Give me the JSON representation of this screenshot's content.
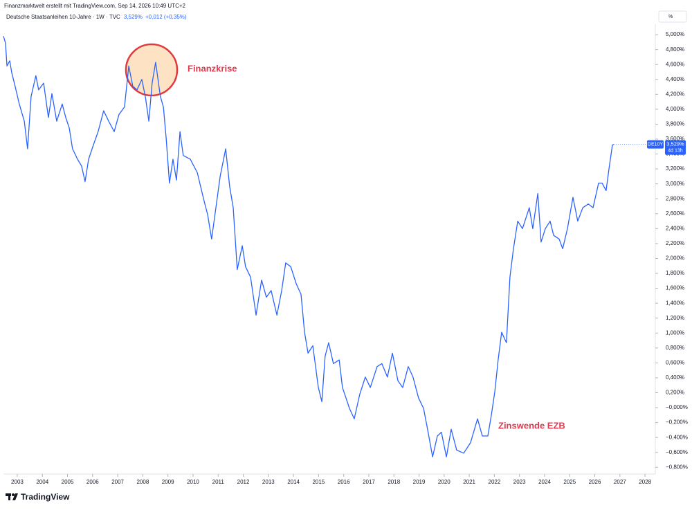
{
  "header": {
    "credit": "Finanzmarktwelt erstellt mit TradingView.com, Sep 14, 2026 10:49 UTC+2",
    "symbol": "Deutsche Staatsanleihen 10-Jahre · 1W · TVC",
    "price": "3,529%",
    "change": "+0,012 (+0,35%)",
    "unit": "%"
  },
  "footer": {
    "logo": "TradingView"
  },
  "chart_data": {
    "type": "line",
    "color": "#2962ff",
    "grid": false,
    "annotations": [
      "Finanzkrise",
      "Zinswende EZB"
    ],
    "last_price_label": "3,529%",
    "countdown": "4d 13h",
    "xlim": [
      2002.45,
      2028.41
    ],
    "ylim": [
      -0.89,
      5.14
    ],
    "xticks": [
      2003,
      2004,
      2005,
      2006,
      2007,
      2008,
      2009,
      2010,
      2011,
      2012,
      2013,
      2014,
      2015,
      2016,
      2017,
      2018,
      2019,
      2020,
      2021,
      2022,
      2023,
      2024,
      2025,
      2026,
      2027,
      2028
    ],
    "yticks": [
      {
        "value": -0.8,
        "label": "−0,800%"
      },
      {
        "value": -0.6,
        "label": "−0,600%"
      },
      {
        "value": -0.4,
        "label": "−0,400%"
      },
      {
        "value": -0.2,
        "label": "−0,200%"
      },
      {
        "value": 0,
        "label": "−0,000%"
      },
      {
        "value": 0.2,
        "label": "0,200%"
      },
      {
        "value": 0.4,
        "label": "0,400%"
      },
      {
        "value": 0.6,
        "label": "0,600%"
      },
      {
        "value": 0.8,
        "label": "0,800%"
      },
      {
        "value": 1.0,
        "label": "1,000%"
      },
      {
        "value": 1.2,
        "label": "1,200%"
      },
      {
        "value": 1.4,
        "label": "1,400%"
      },
      {
        "value": 1.6,
        "label": "1,600%"
      },
      {
        "value": 1.8,
        "label": "1,800%"
      },
      {
        "value": 2.0,
        "label": "2,000%"
      },
      {
        "value": 2.2,
        "label": "2,200%"
      },
      {
        "value": 2.4,
        "label": "2,400%"
      },
      {
        "value": 2.6,
        "label": "2,600%"
      },
      {
        "value": 2.8,
        "label": "2,800%"
      },
      {
        "value": 3.0,
        "label": "3,000%"
      },
      {
        "value": 3.2,
        "label": "3,200%"
      },
      {
        "value": 3.4,
        "label": "3,400%"
      },
      {
        "value": 3.6,
        "label": "3,600%"
      },
      {
        "value": 3.8,
        "label": "3,800%"
      },
      {
        "value": 4.0,
        "label": "4,000%"
      },
      {
        "value": 4.2,
        "label": "4,200%"
      },
      {
        "value": 4.4,
        "label": "4,400%"
      },
      {
        "value": 4.6,
        "label": "4,600%"
      },
      {
        "value": 4.8,
        "label": "4,800%"
      },
      {
        "value": 5.0,
        "label": "5,000%"
      }
    ],
    "x": [
      2002.45,
      2002.53,
      2002.59,
      2002.7,
      2002.78,
      2002.92,
      2003.08,
      2003.28,
      2003.41,
      2003.55,
      2003.74,
      2003.85,
      2004.05,
      2004.24,
      2004.38,
      2004.57,
      2004.79,
      2004.93,
      2005.07,
      2005.2,
      2005.4,
      2005.56,
      2005.7,
      2005.84,
      2006.03,
      2006.22,
      2006.44,
      2006.64,
      2006.86,
      2007.05,
      2007.27,
      2007.44,
      2007.6,
      2007.77,
      2007.96,
      2008.1,
      2008.24,
      2008.37,
      2008.51,
      2008.7,
      2008.82,
      2008.93,
      2009.06,
      2009.2,
      2009.34,
      2009.48,
      2009.61,
      2009.89,
      2010.17,
      2010.44,
      2010.58,
      2010.74,
      2010.91,
      2011.08,
      2011.3,
      2011.46,
      2011.6,
      2011.76,
      2011.96,
      2012.09,
      2012.29,
      2012.51,
      2012.73,
      2012.92,
      2013.11,
      2013.34,
      2013.53,
      2013.69,
      2013.89,
      2014.11,
      2014.3,
      2014.44,
      2014.58,
      2014.77,
      2014.99,
      2015.13,
      2015.26,
      2015.4,
      2015.59,
      2015.82,
      2015.95,
      2016.09,
      2016.23,
      2016.42,
      2016.64,
      2016.86,
      2017.06,
      2017.33,
      2017.52,
      2017.74,
      2017.94,
      2018.16,
      2018.35,
      2018.57,
      2018.76,
      2018.98,
      2019.18,
      2019.34,
      2019.54,
      2019.73,
      2019.89,
      2020.09,
      2020.28,
      2020.5,
      2020.78,
      2021.05,
      2021.33,
      2021.52,
      2021.74,
      2021.88,
      2022.02,
      2022.15,
      2022.29,
      2022.48,
      2022.62,
      2022.76,
      2022.93,
      2023.12,
      2023.39,
      2023.53,
      2023.73,
      2023.86,
      2024.03,
      2024.22,
      2024.36,
      2024.58,
      2024.72,
      2024.91,
      2025.13,
      2025.32,
      2025.52,
      2025.74,
      2025.93,
      2026.15,
      2026.29,
      2026.45,
      2026.56,
      2026.7,
      2026.76
    ],
    "series": [
      {
        "name": "DE10Y",
        "color": "#2962ff",
        "values": [
          4.98,
          4.89,
          4.58,
          4.65,
          4.49,
          4.3,
          4.07,
          3.84,
          3.47,
          4.17,
          4.45,
          4.26,
          4.35,
          3.89,
          4.21,
          3.84,
          4.07,
          3.89,
          3.75,
          3.47,
          3.33,
          3.24,
          3.03,
          3.33,
          3.52,
          3.7,
          3.98,
          3.84,
          3.7,
          3.93,
          4.03,
          4.58,
          4.31,
          4.26,
          4.4,
          4.17,
          3.84,
          4.35,
          4.63,
          4.17,
          4.03,
          3.61,
          3.01,
          3.33,
          3.05,
          3.7,
          3.38,
          3.33,
          3.15,
          2.77,
          2.59,
          2.26,
          2.68,
          3.1,
          3.47,
          2.96,
          2.68,
          1.85,
          2.17,
          1.89,
          1.75,
          1.24,
          1.71,
          1.48,
          1.57,
          1.24,
          1.57,
          1.94,
          1.89,
          1.66,
          1.52,
          1.01,
          0.73,
          0.83,
          0.27,
          0.08,
          0.69,
          0.87,
          0.59,
          0.64,
          0.27,
          0.13,
          -0.01,
          -0.15,
          0.18,
          0.41,
          0.27,
          0.55,
          0.59,
          0.41,
          0.73,
          0.36,
          0.27,
          0.55,
          0.41,
          0.13,
          -0.01,
          -0.29,
          -0.66,
          -0.38,
          -0.33,
          -0.66,
          -0.29,
          -0.57,
          -0.61,
          -0.47,
          -0.15,
          -0.38,
          -0.38,
          -0.1,
          0.22,
          0.64,
          1.01,
          0.87,
          1.75,
          2.13,
          2.5,
          2.4,
          2.68,
          2.4,
          2.87,
          2.22,
          2.4,
          2.5,
          2.31,
          2.26,
          2.13,
          2.4,
          2.82,
          2.5,
          2.68,
          2.73,
          2.68,
          3.01,
          3.01,
          2.91,
          3.19,
          3.52,
          3.529
        ]
      }
    ]
  }
}
